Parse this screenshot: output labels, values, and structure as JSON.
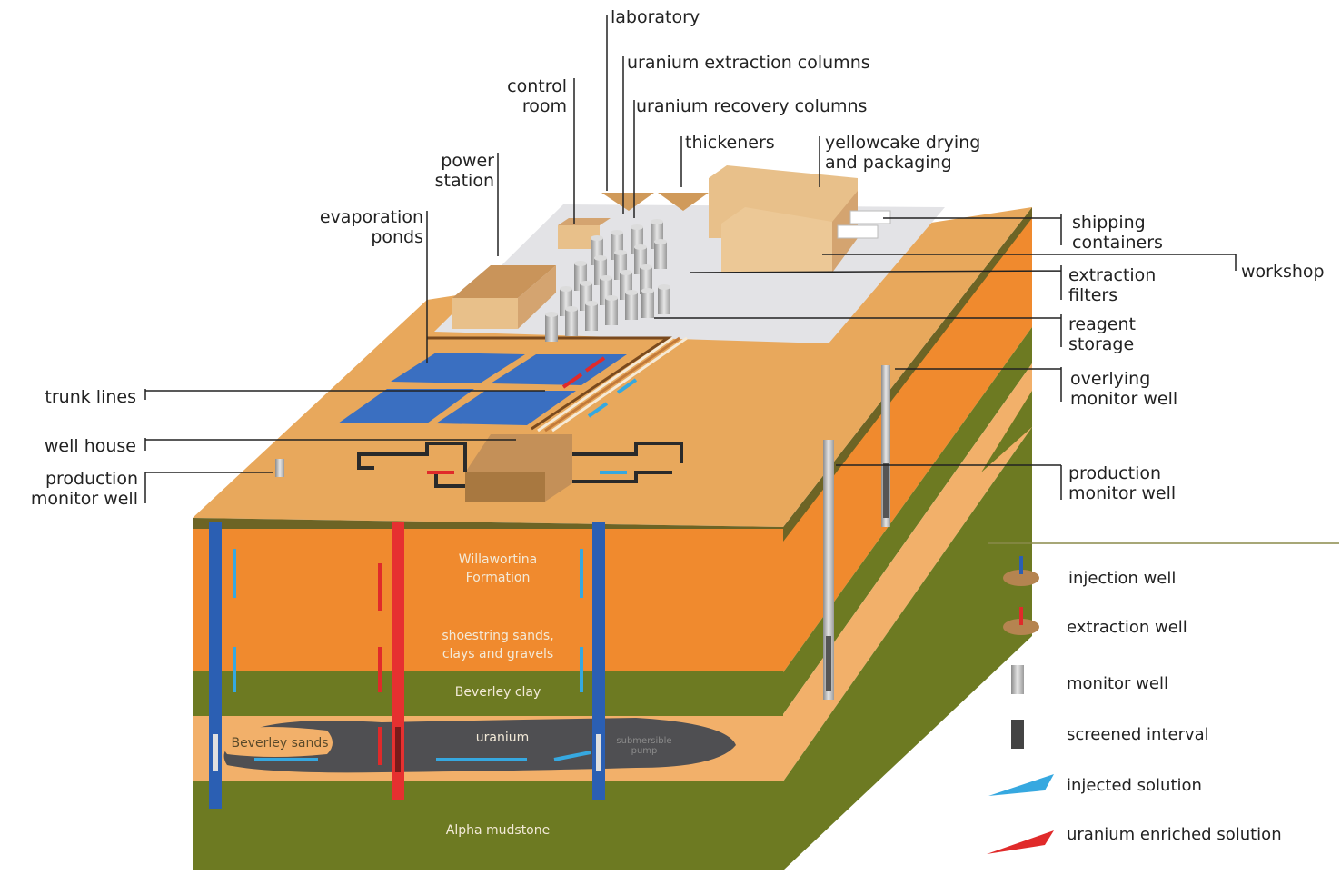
{
  "callouts": {
    "laboratory": "laboratory",
    "uranium_extraction_columns": "uranium extraction columns",
    "uranium_recovery_columns": "uranium recovery columns",
    "control_room": "control\nroom",
    "thickeners": "thickeners",
    "yellowcake_drying": "yellowcake drying\nand packaging",
    "power_station": "power\nstation",
    "evaporation_ponds": "evaporation\nponds",
    "shipping_containers": "shipping\ncontainers",
    "workshop": "workshop",
    "extraction_filters": "extraction\nfilters",
    "reagent_storage": "reagent\nstorage",
    "trunk_lines": "trunk lines",
    "overlying_monitor_well": "overlying\nmonitor well",
    "well_house": "well house",
    "production_monitor_well_left": "production\nmonitor well",
    "production_monitor_well_right": "production\nmonitor well"
  },
  "strata": {
    "willawortina": "Willawortina\nFormation",
    "shoestring": "shoestring sands,\nclays and gravels",
    "beverley_clay": "Beverley clay",
    "uranium": "uranium",
    "beverley_sands": "Beverley sands",
    "submersible_pump": "submersible\npump",
    "alpha_mudstone": "Alpha mudstone"
  },
  "legend": {
    "injection_well": "injection well",
    "extraction_well": "extraction well",
    "monitor_well": "monitor well",
    "screened_interval": "screened interval",
    "injected_solution": "injected solution",
    "uranium_enriched_solution": "uranium enriched solution"
  },
  "colors": {
    "orange_layer": "#f08a2e",
    "sand_layer": "#f2b06a",
    "green_layer": "#6d7a22",
    "uranium_body": "#555555",
    "surface": "#e8a85c",
    "pond": "#3a6fc1",
    "injected": "#36a8e0",
    "enriched": "#e02a2a",
    "building": "#e8c08a"
  }
}
